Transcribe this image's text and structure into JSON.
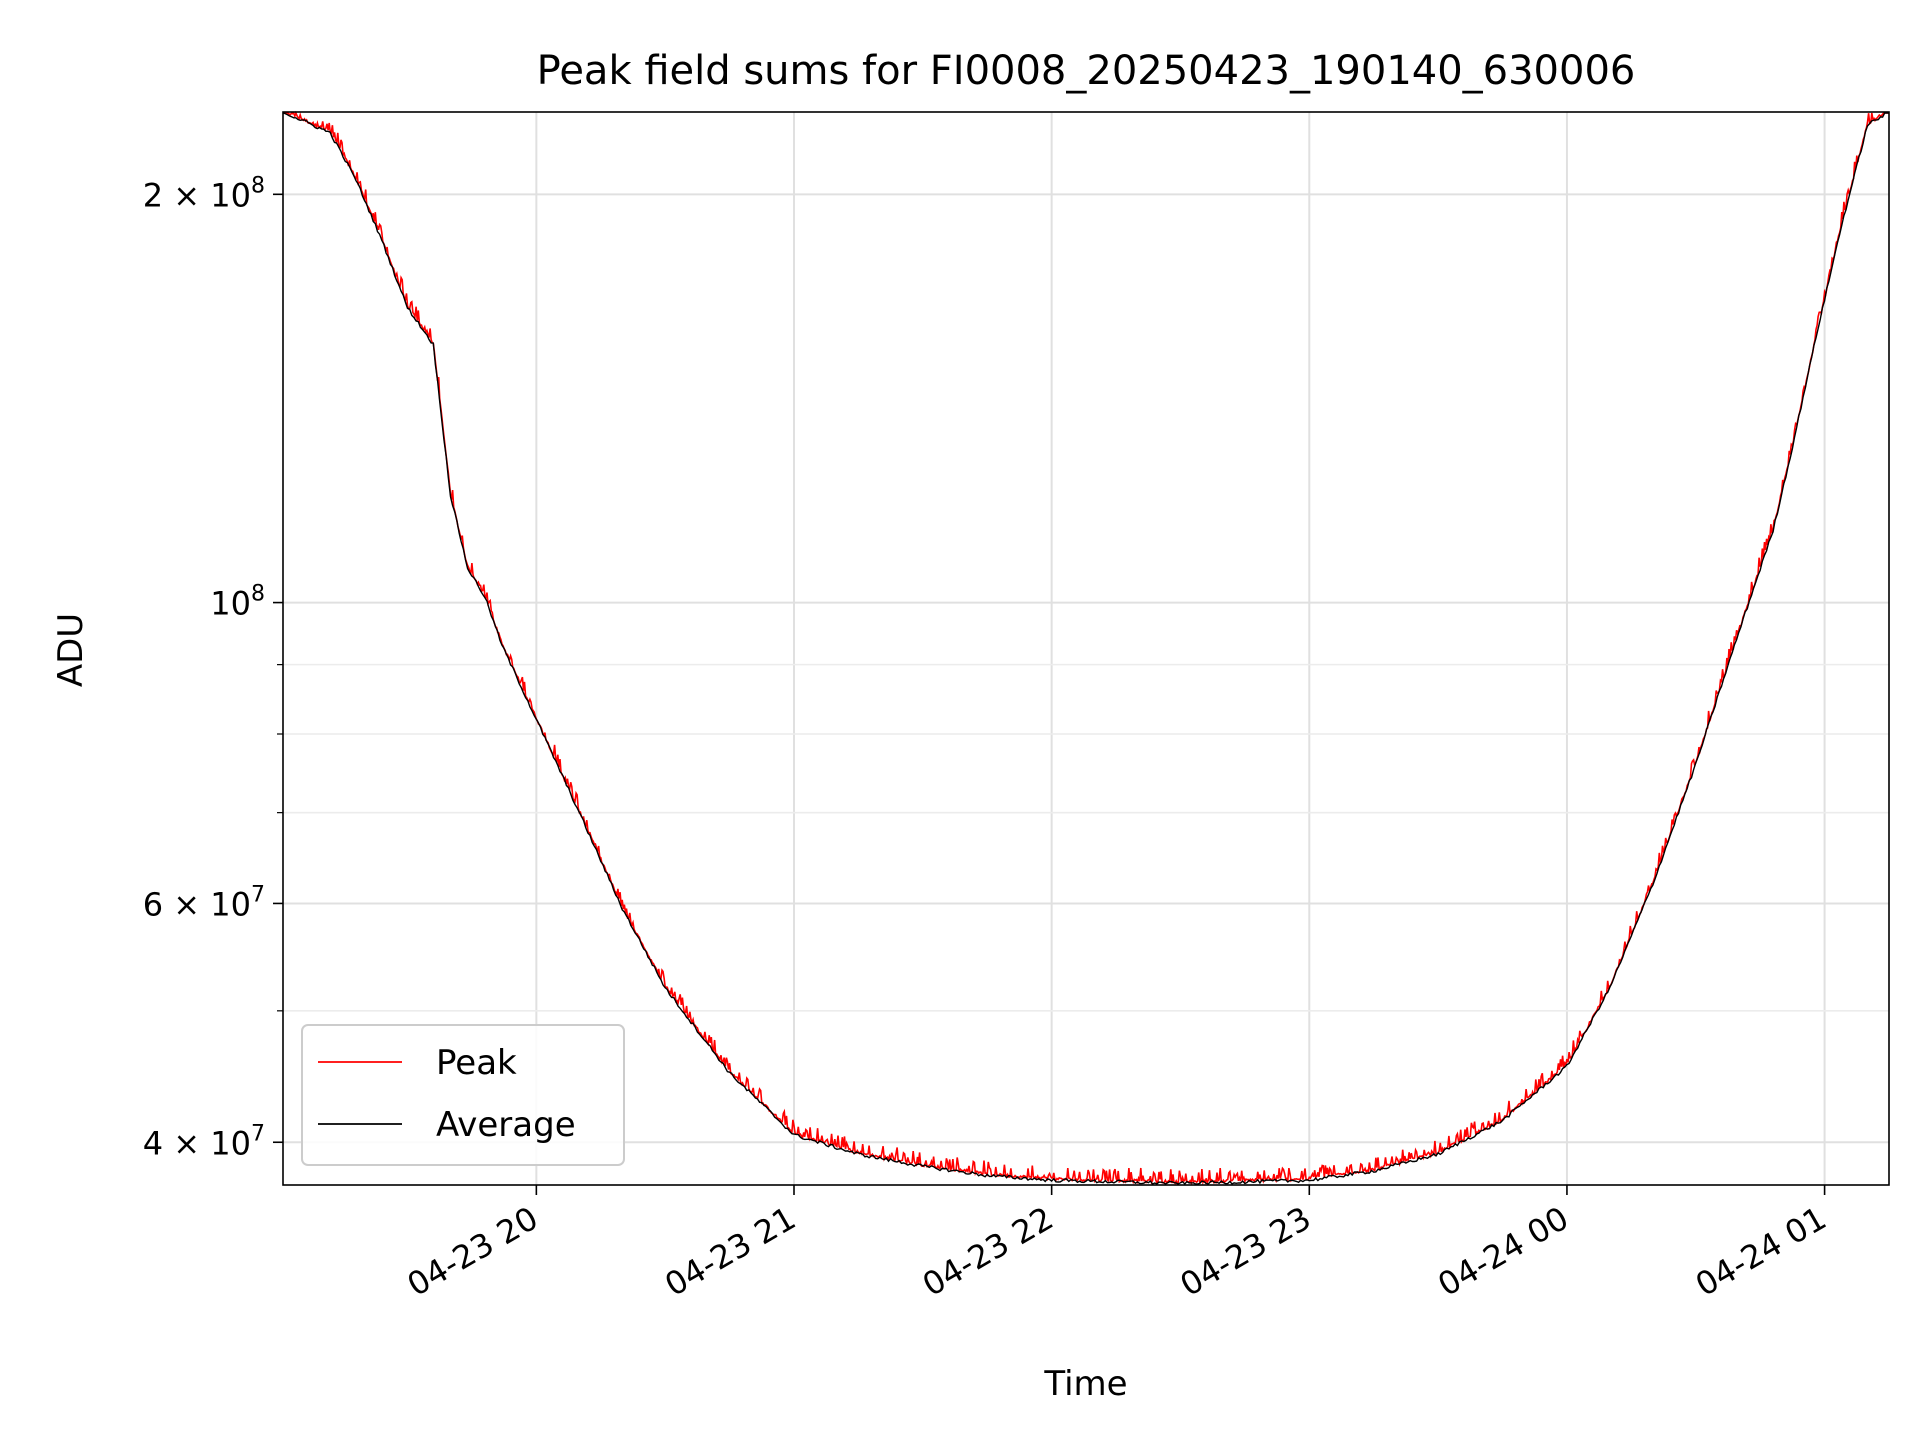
{
  "chart_data": {
    "type": "line",
    "title": "Peak field sums for FI0008_20250423_190140_630006",
    "xlabel": "Time",
    "ylabel": "ADU",
    "yscale": "log",
    "xlim": [
      "2025-04-23 19:01",
      "2025-04-24 01:15"
    ],
    "ylim": [
      37200000,
      230000000
    ],
    "grid": true,
    "legend_position": "lower-left",
    "x_ticks": [
      {
        "t": "2025-04-23 20:00",
        "label": "04-23 20"
      },
      {
        "t": "2025-04-23 21:00",
        "label": "04-23 21"
      },
      {
        "t": "2025-04-23 22:00",
        "label": "04-23 22"
      },
      {
        "t": "2025-04-23 23:00",
        "label": "04-23 23"
      },
      {
        "t": "2025-04-24 00:00",
        "label": "04-24 00"
      },
      {
        "t": "2025-04-24 01:00",
        "label": "04-24 01"
      }
    ],
    "y_major_ticks": [
      {
        "value": 40000000,
        "mantissa": "4",
        "exponent": "7"
      },
      {
        "value": 60000000,
        "mantissa": "6",
        "exponent": "7"
      },
      {
        "value": 100000000,
        "mantissa": "",
        "exponent": "8"
      },
      {
        "value": 200000000,
        "mantissa": "2",
        "exponent": "8"
      }
    ],
    "y_minor_ticks": [
      50000000,
      70000000,
      80000000,
      90000000
    ],
    "series": [
      {
        "name": "Average",
        "color": "#000000",
        "points": [
          [
            "2025-04-23 19:01",
            230000000
          ],
          [
            "2025-04-23 19:12",
            222000000
          ],
          [
            "2025-04-23 19:18",
            205000000
          ],
          [
            "2025-04-23 19:24",
            185000000
          ],
          [
            "2025-04-23 19:30",
            165000000
          ],
          [
            "2025-04-23 19:36",
            155000000
          ],
          [
            "2025-04-23 19:40",
            120000000
          ],
          [
            "2025-04-23 19:44",
            106000000
          ],
          [
            "2025-04-23 19:48",
            101000000
          ],
          [
            "2025-04-23 19:52",
            93000000
          ],
          [
            "2025-04-23 20:00",
            82000000
          ],
          [
            "2025-04-23 20:10",
            70000000
          ],
          [
            "2025-04-23 20:20",
            59500000
          ],
          [
            "2025-04-23 20:30",
            52000000
          ],
          [
            "2025-04-23 20:45",
            45000000
          ],
          [
            "2025-04-23 21:00",
            40500000
          ],
          [
            "2025-04-23 21:15",
            39200000
          ],
          [
            "2025-04-23 21:30",
            38400000
          ],
          [
            "2025-04-23 21:45",
            37800000
          ],
          [
            "2025-04-23 22:00",
            37500000
          ],
          [
            "2025-04-23 22:30",
            37300000
          ],
          [
            "2025-04-23 23:00",
            37500000
          ],
          [
            "2025-04-23 23:15",
            38100000
          ],
          [
            "2025-04-23 23:30",
            39200000
          ],
          [
            "2025-04-23 23:45",
            41500000
          ],
          [
            "2025-04-24 00:00",
            45500000
          ],
          [
            "2025-04-24 00:10",
            52000000
          ],
          [
            "2025-04-24 00:20",
            62000000
          ],
          [
            "2025-04-24 00:30",
            76000000
          ],
          [
            "2025-04-24 00:40",
            95000000
          ],
          [
            "2025-04-24 00:48",
            113000000
          ],
          [
            "2025-04-24 00:52",
            128000000
          ],
          [
            "2025-04-24 00:58",
            157000000
          ],
          [
            "2025-04-24 01:04",
            190000000
          ],
          [
            "2025-04-24 01:10",
            225000000
          ],
          [
            "2025-04-24 01:15",
            230000000
          ]
        ]
      },
      {
        "name": "Peak",
        "color": "#ff0000",
        "note": "closely tracks Average with small upward noise",
        "noise_fraction": 0.025
      }
    ]
  }
}
